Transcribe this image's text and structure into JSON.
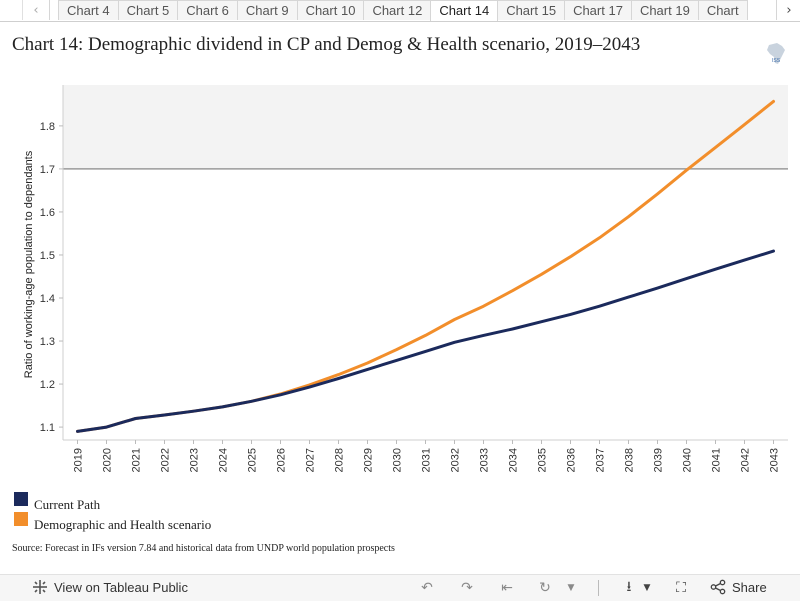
{
  "tabs": {
    "items": [
      "Chart 4",
      "Chart 5",
      "Chart 6",
      "Chart 9",
      "Chart 10",
      "Chart 12",
      "Chart 14",
      "Chart 15",
      "Chart 17",
      "Chart 19",
      "Chart"
    ],
    "active_index": 6
  },
  "title": "Chart 14: Demographic dividend in CP and Demog & Health scenario, 2019–2043",
  "logo_text": "ISS",
  "chart_data": {
    "type": "line",
    "title": "",
    "xlabel": "",
    "ylabel": "Ratio of working-age population to dependants",
    "x": [
      "2019",
      "2020",
      "2021",
      "2022",
      "2023",
      "2024",
      "2025",
      "2026",
      "2027",
      "2028",
      "2029",
      "2030",
      "2031",
      "2032",
      "2033",
      "2034",
      "2035",
      "2036",
      "2037",
      "2038",
      "2039",
      "2040",
      "2041",
      "2042",
      "2043"
    ],
    "yticks": [
      "1.1",
      "1.2",
      "1.3",
      "1.4",
      "1.5",
      "1.6",
      "1.7",
      "1.8"
    ],
    "ylim": [
      1.07,
      1.895
    ],
    "reference_line": 1.7,
    "shaded_region_above": 1.7,
    "series": [
      {
        "name": "Current Path",
        "color": "#1b2a5c",
        "values": [
          1.09,
          1.1,
          1.12,
          1.128,
          1.137,
          1.147,
          1.16,
          1.175,
          1.193,
          1.213,
          1.234,
          1.255,
          1.276,
          1.297,
          1.313,
          1.328,
          1.345,
          1.362,
          1.381,
          1.402,
          1.423,
          1.445,
          1.467,
          1.488,
          1.509
        ]
      },
      {
        "name": "Demographic and Health scenario",
        "color": "#f28e2b",
        "values": [
          1.09,
          1.1,
          1.12,
          1.128,
          1.137,
          1.147,
          1.16,
          1.177,
          1.198,
          1.222,
          1.249,
          1.28,
          1.313,
          1.35,
          1.381,
          1.417,
          1.455,
          1.496,
          1.54,
          1.589,
          1.642,
          1.697,
          1.75,
          1.803,
          1.857
        ]
      }
    ],
    "legend_position": "bottom-left",
    "grid": false
  },
  "legend": {
    "items": [
      {
        "label": "Current Path",
        "color": "#1b2a5c"
      },
      {
        "label": "Demographic and Health scenario",
        "color": "#f28e2b"
      }
    ]
  },
  "source": "Source: Forecast in IFs version 7.84 and historical data from UNDP world population prospects",
  "toolbar": {
    "view_label": "View on Tableau Public",
    "share_label": "Share"
  }
}
